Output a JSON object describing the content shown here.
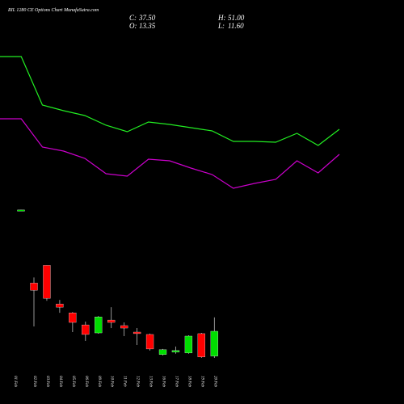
{
  "chart_data": [
    {
      "type": "candlestick",
      "title": "RIL 1280 CE Options Chart MunafaSutra.com",
      "summary": [
        [
          "C:",
          "37.50"
        ],
        [
          "H:",
          "51.00"
        ],
        [
          "O:",
          "13.35"
        ],
        [
          "L:",
          "11.60"
        ]
      ],
      "categories": [
        "01 Feb",
        "02 Feb",
        "03 Feb",
        "04 Feb",
        "05 Feb",
        "06 Feb",
        "09 Feb",
        "10 Feb",
        "11 Feb",
        "12 Feb",
        "13 Feb",
        "16 Feb",
        "17 Feb",
        "18 Feb",
        "19 Feb",
        "20 Feb"
      ],
      "open": [
        155.0,
        84.3,
        101.5,
        64.0,
        55.4,
        43.7,
        35.9,
        48.4,
        43.0,
        36.7,
        34.4,
        14.9,
        17.2,
        16.4,
        35.2,
        13.35
      ],
      "high": [
        155.5,
        89.8,
        101.5,
        67.9,
        56.2,
        46.9,
        52.3,
        60.9,
        46.1,
        40.6,
        35.2,
        20.3,
        22.7,
        33.6,
        35.9,
        51.0
      ],
      "low": [
        154.8,
        42.2,
        67.1,
        55.4,
        36.7,
        28.1,
        35.1,
        40.6,
        32.8,
        24.2,
        18.8,
        14.1,
        15.7,
        15.7,
        11.7,
        11.6
      ],
      "close": [
        155.3,
        77.3,
        69.5,
        60.9,
        46.1,
        34.4,
        51.5,
        46.1,
        40.6,
        35.2,
        20.3,
        19.6,
        18.8,
        32.8,
        12.5,
        37.5
      ],
      "up_color": "#00dd00",
      "down_color": "#ff0000"
    },
    {
      "type": "line",
      "series": [
        {
          "color": "#22ee22",
          "values": [
            180,
            180,
            120,
            113,
            107,
            95,
            87,
            99,
            96,
            92,
            88,
            75,
            75,
            74,
            85,
            70,
            90
          ]
        },
        {
          "color": "#cc00cc",
          "values": [
            103,
            103,
            68,
            63,
            54,
            35,
            32,
            53,
            51,
            42,
            34,
            17,
            23,
            28,
            51,
            36,
            59
          ]
        }
      ]
    }
  ]
}
